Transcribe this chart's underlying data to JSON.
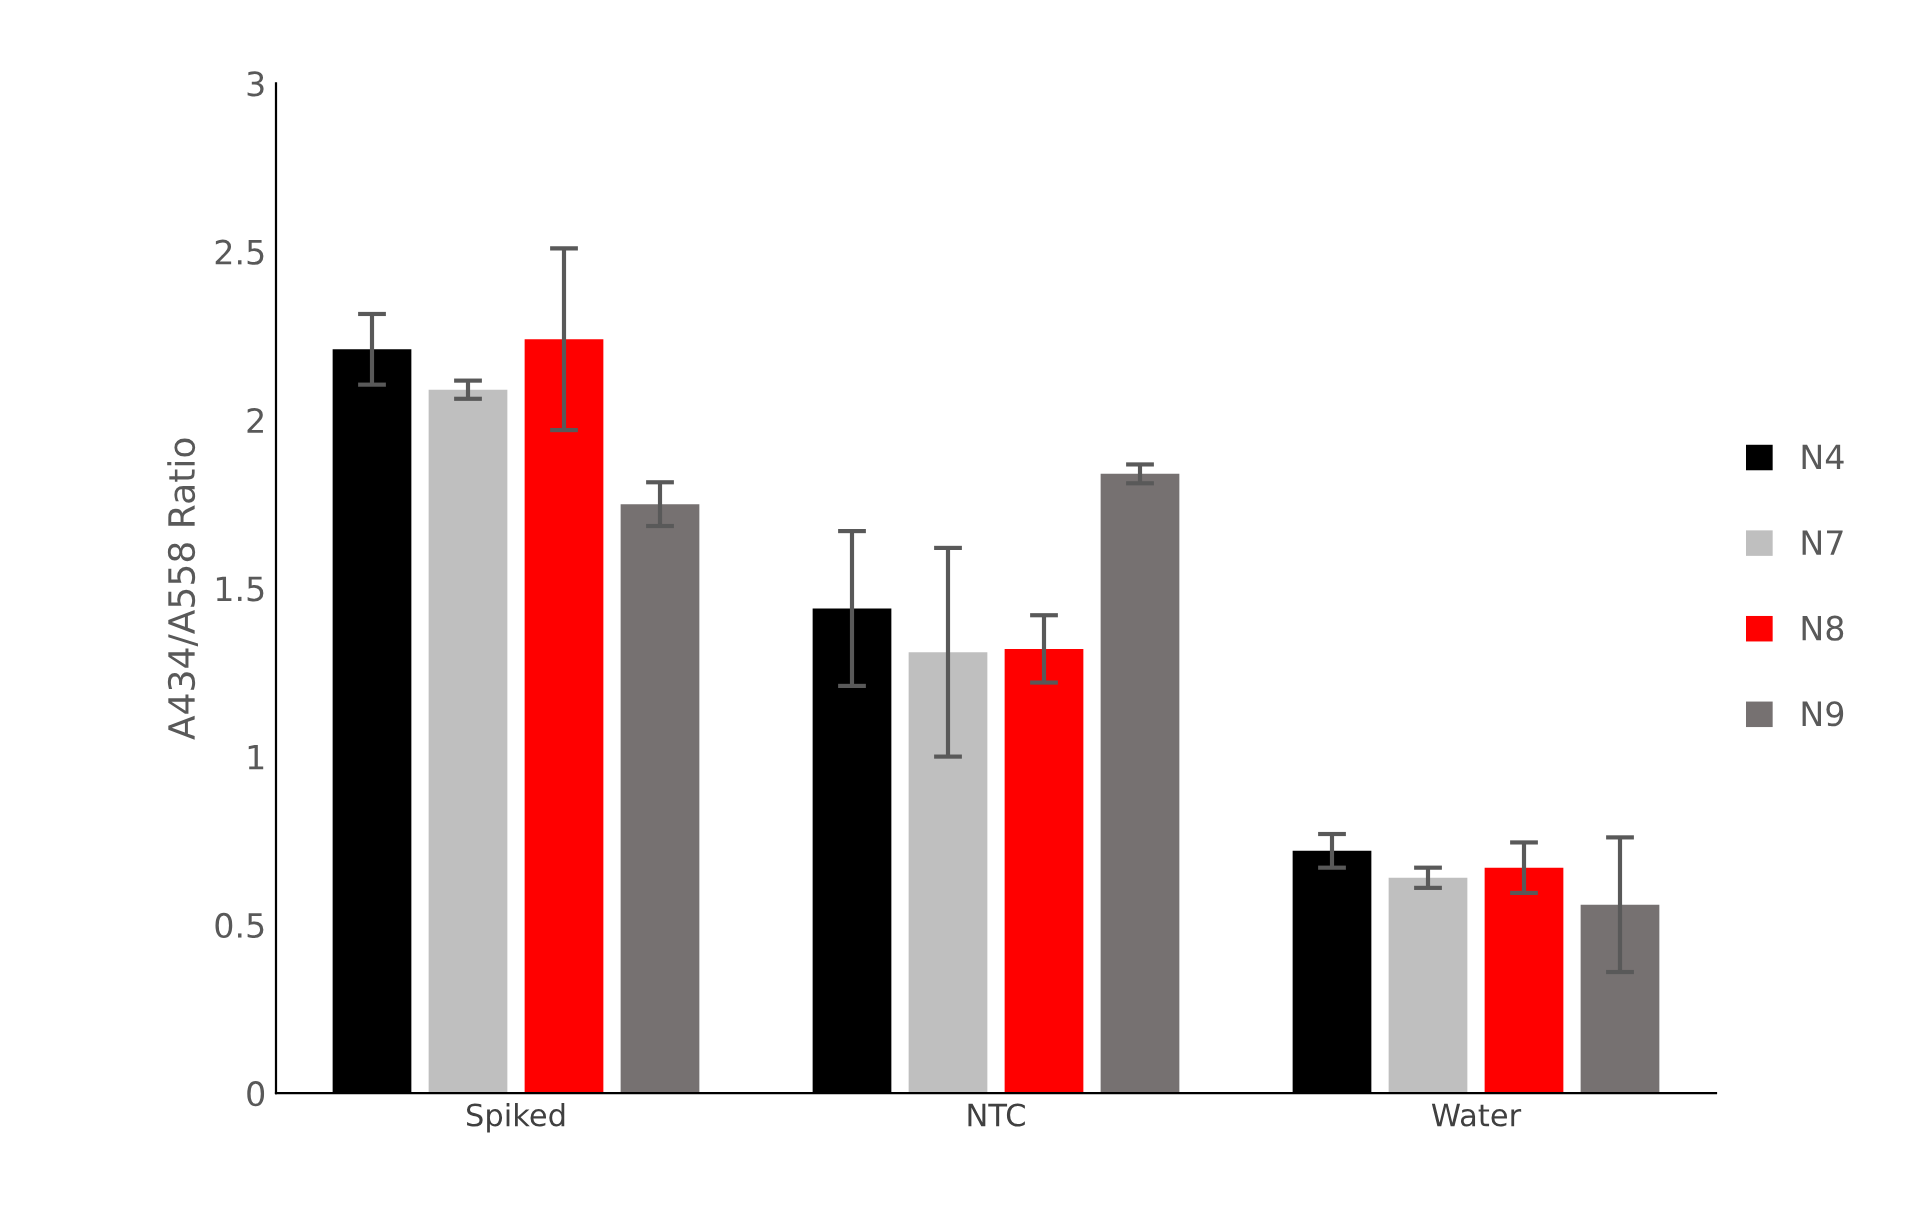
{
  "chart_data": {
    "type": "bar",
    "ylabel": "A434/A558 Ratio",
    "categories": [
      "Spiked",
      "NTC",
      "Water"
    ],
    "series": [
      {
        "name": "N4",
        "color": "#000000",
        "values": [
          2.21,
          1.44,
          0.72
        ],
        "errors": [
          0.105,
          0.23,
          0.05
        ]
      },
      {
        "name": "N7",
        "color": "#bfbfbf",
        "values": [
          2.09,
          1.31,
          0.64
        ],
        "errors": [
          0.027,
          0.31,
          0.03
        ]
      },
      {
        "name": "N8",
        "color": "#ff0000",
        "values": [
          2.24,
          1.32,
          0.67
        ],
        "errors": [
          0.27,
          0.1,
          0.075
        ]
      },
      {
        "name": "N9",
        "color": "#767171",
        "values": [
          1.75,
          1.84,
          0.56
        ],
        "errors": [
          0.065,
          0.028,
          0.2
        ]
      }
    ],
    "ylim": [
      0,
      3
    ],
    "yticks": [
      0,
      0.5,
      1,
      1.5,
      2,
      2.5,
      3
    ],
    "grid": false,
    "legend": "right"
  }
}
